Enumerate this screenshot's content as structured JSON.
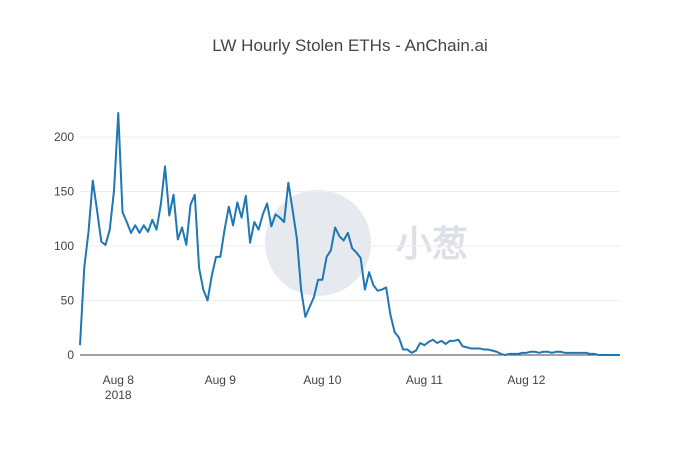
{
  "chart_data": {
    "type": "line",
    "title": "LW Hourly Stolen ETHs - AnChain.ai",
    "watermark": "小葱",
    "x": [
      "2018-08-07 15:00",
      "2018-08-07 16:00",
      "2018-08-07 17:00",
      "2018-08-07 18:00",
      "2018-08-07 19:00",
      "2018-08-07 20:00",
      "2018-08-07 21:00",
      "2018-08-07 22:00",
      "2018-08-07 23:00",
      "2018-08-08 00:00",
      "2018-08-08 01:00",
      "2018-08-08 02:00",
      "2018-08-08 03:00",
      "2018-08-08 04:00",
      "2018-08-08 05:00",
      "2018-08-08 06:00",
      "2018-08-08 07:00",
      "2018-08-08 08:00",
      "2018-08-08 09:00",
      "2018-08-08 10:00",
      "2018-08-08 11:00",
      "2018-08-08 12:00",
      "2018-08-08 13:00",
      "2018-08-08 14:00",
      "2018-08-08 15:00",
      "2018-08-08 16:00",
      "2018-08-08 17:00",
      "2018-08-08 18:00",
      "2018-08-08 19:00",
      "2018-08-08 20:00",
      "2018-08-08 21:00",
      "2018-08-08 22:00",
      "2018-08-08 23:00",
      "2018-08-09 00:00",
      "2018-08-09 01:00",
      "2018-08-09 02:00",
      "2018-08-09 03:00",
      "2018-08-09 04:00",
      "2018-08-09 05:00",
      "2018-08-09 06:00",
      "2018-08-09 07:00",
      "2018-08-09 08:00",
      "2018-08-09 09:00",
      "2018-08-09 10:00",
      "2018-08-09 11:00",
      "2018-08-09 12:00",
      "2018-08-09 13:00",
      "2018-08-09 14:00",
      "2018-08-09 15:00",
      "2018-08-09 16:00",
      "2018-08-09 17:00",
      "2018-08-09 18:00",
      "2018-08-09 19:00",
      "2018-08-09 20:00",
      "2018-08-09 21:00",
      "2018-08-09 22:00",
      "2018-08-09 23:00",
      "2018-08-10 00:00",
      "2018-08-10 01:00",
      "2018-08-10 02:00",
      "2018-08-10 03:00",
      "2018-08-10 04:00",
      "2018-08-10 05:00",
      "2018-08-10 06:00",
      "2018-08-10 07:00",
      "2018-08-10 08:00",
      "2018-08-10 09:00",
      "2018-08-10 10:00",
      "2018-08-10 11:00",
      "2018-08-10 12:00",
      "2018-08-10 13:00",
      "2018-08-10 14:00",
      "2018-08-10 15:00",
      "2018-08-10 16:00",
      "2018-08-10 17:00",
      "2018-08-10 18:00",
      "2018-08-10 19:00",
      "2018-08-10 20:00",
      "2018-08-10 21:00",
      "2018-08-10 22:00",
      "2018-08-10 23:00",
      "2018-08-11 00:00",
      "2018-08-11 01:00",
      "2018-08-11 02:00",
      "2018-08-11 03:00",
      "2018-08-11 04:00",
      "2018-08-11 05:00",
      "2018-08-11 06:00",
      "2018-08-11 07:00",
      "2018-08-11 08:00",
      "2018-08-11 09:00",
      "2018-08-11 10:00",
      "2018-08-11 11:00",
      "2018-08-11 12:00",
      "2018-08-11 13:00",
      "2018-08-11 14:00",
      "2018-08-11 15:00",
      "2018-08-11 16:00",
      "2018-08-11 17:00",
      "2018-08-11 18:00",
      "2018-08-11 19:00",
      "2018-08-11 20:00",
      "2018-08-11 21:00",
      "2018-08-11 22:00",
      "2018-08-11 23:00",
      "2018-08-12 00:00",
      "2018-08-12 01:00",
      "2018-08-12 02:00",
      "2018-08-12 03:00",
      "2018-08-12 04:00",
      "2018-08-12 05:00",
      "2018-08-12 06:00",
      "2018-08-12 07:00",
      "2018-08-12 08:00",
      "2018-08-12 09:00",
      "2018-08-12 10:00",
      "2018-08-12 11:00",
      "2018-08-12 12:00",
      "2018-08-12 13:00",
      "2018-08-12 14:00",
      "2018-08-12 15:00",
      "2018-08-12 16:00",
      "2018-08-12 17:00",
      "2018-08-12 18:00",
      "2018-08-12 19:00",
      "2018-08-12 20:00",
      "2018-08-12 21:00",
      "2018-08-12 22:00"
    ],
    "values": [
      9,
      80,
      113,
      160,
      133,
      104,
      101,
      115,
      151,
      222,
      131,
      122,
      112,
      119,
      112,
      119,
      113,
      124,
      115,
      138,
      173,
      128,
      147,
      106,
      117,
      101,
      138,
      147,
      80,
      60,
      50,
      73,
      90,
      90,
      115,
      136,
      119,
      140,
      126,
      146,
      103,
      122,
      115,
      129,
      139,
      118,
      129,
      126,
      122,
      158,
      133,
      107,
      60,
      35,
      44,
      53,
      69,
      69,
      90,
      96,
      117,
      109,
      105,
      112,
      98,
      94,
      89,
      60,
      76,
      64,
      59,
      60,
      62,
      37,
      21,
      16,
      5,
      5,
      2,
      4,
      11,
      9,
      12,
      14,
      11,
      13,
      10,
      13,
      13,
      14,
      8,
      7,
      6,
      6,
      6,
      5,
      5,
      4,
      3,
      1,
      0,
      1,
      1,
      1,
      2,
      2,
      3,
      3,
      2,
      3,
      3,
      2,
      3,
      3,
      2,
      2,
      2,
      2,
      2,
      2,
      1,
      1,
      0,
      0,
      0,
      0,
      0,
      0
    ],
    "color": "#1f77b4",
    "xlim": [
      "2018-08-07 15:00",
      "2018-08-12 22:00"
    ],
    "xticks": [
      {
        "value": "2018-08-08 00:00",
        "label": "Aug 8\n2018"
      },
      {
        "value": "2018-08-09 00:00",
        "label": "Aug 9"
      },
      {
        "value": "2018-08-10 00:00",
        "label": "Aug 10"
      },
      {
        "value": "2018-08-11 00:00",
        "label": "Aug 11"
      },
      {
        "value": "2018-08-12 00:00",
        "label": "Aug 12"
      }
    ],
    "ylim": [
      0,
      233
    ],
    "yticks": [
      0,
      50,
      100,
      150,
      200
    ],
    "grid": true
  }
}
